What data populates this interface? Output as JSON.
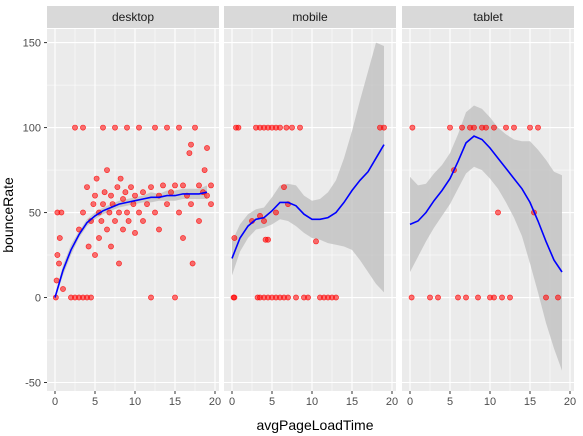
{
  "chart_data": {
    "type": "scatter",
    "xlabel": "avgPageLoadTime",
    "ylabel": "bounceRate",
    "xlim": [
      -1,
      20.5
    ],
    "ylim": [
      -55,
      158
    ],
    "x_ticks": [
      0,
      5,
      10,
      15,
      20
    ],
    "y_ticks": [
      -50,
      0,
      50,
      100,
      150
    ],
    "grid": true,
    "legend": "none",
    "colors": {
      "points": "#ff0000",
      "smooth_line": "#0000ff",
      "ribbon": "#bdbdbd",
      "panel_bg": "#ebebeb",
      "strip_bg": "#d9d9d9",
      "grid": "#ffffff"
    },
    "panels": [
      {
        "name": "desktop",
        "points": [
          [
            0.1,
            0
          ],
          [
            0.2,
            10
          ],
          [
            0.3,
            25
          ],
          [
            0.3,
            50
          ],
          [
            0.5,
            20
          ],
          [
            0.6,
            35
          ],
          [
            0.8,
            50
          ],
          [
            1.0,
            5
          ],
          [
            2.0,
            0
          ],
          [
            2.5,
            0
          ],
          [
            3.0,
            0
          ],
          [
            3.5,
            0
          ],
          [
            2.5,
            100
          ],
          [
            3.5,
            100
          ],
          [
            4.0,
            0
          ],
          [
            4.5,
            0
          ],
          [
            3.0,
            40
          ],
          [
            3.5,
            50
          ],
          [
            4.0,
            65
          ],
          [
            4.2,
            30
          ],
          [
            4.5,
            45
          ],
          [
            4.8,
            55
          ],
          [
            5.0,
            60
          ],
          [
            5.0,
            25
          ],
          [
            5.2,
            70
          ],
          [
            5.5,
            50
          ],
          [
            5.5,
            35
          ],
          [
            5.8,
            45
          ],
          [
            6.0,
            55
          ],
          [
            6.0,
            100
          ],
          [
            6.2,
            62
          ],
          [
            6.5,
            40
          ],
          [
            6.5,
            75
          ],
          [
            6.8,
            50
          ],
          [
            7.0,
            30
          ],
          [
            7.0,
            60
          ],
          [
            7.2,
            55
          ],
          [
            7.5,
            45
          ],
          [
            7.5,
            100
          ],
          [
            7.8,
            65
          ],
          [
            8.0,
            50
          ],
          [
            8.0,
            20
          ],
          [
            8.2,
            70
          ],
          [
            8.5,
            40
          ],
          [
            8.5,
            58
          ],
          [
            8.8,
            62
          ],
          [
            9.0,
            50
          ],
          [
            9.0,
            100
          ],
          [
            9.2,
            45
          ],
          [
            9.5,
            65
          ],
          [
            9.8,
            55
          ],
          [
            10.0,
            38
          ],
          [
            10.0,
            60
          ],
          [
            10.5,
            50
          ],
          [
            10.5,
            100
          ],
          [
            11.0,
            62
          ],
          [
            11.0,
            45
          ],
          [
            11.5,
            55
          ],
          [
            12.0,
            65
          ],
          [
            12.0,
            0
          ],
          [
            12.5,
            50
          ],
          [
            12.5,
            100
          ],
          [
            13.0,
            60
          ],
          [
            13.0,
            40
          ],
          [
            13.5,
            66
          ],
          [
            14.0,
            55
          ],
          [
            14.0,
            100
          ],
          [
            14.5,
            62
          ],
          [
            15.0,
            66
          ],
          [
            15.0,
            0
          ],
          [
            15.5,
            50
          ],
          [
            15.5,
            100
          ],
          [
            16.0,
            66
          ],
          [
            16.0,
            35
          ],
          [
            16.5,
            60
          ],
          [
            17.0,
            90
          ],
          [
            17.0,
            55
          ],
          [
            17.5,
            100
          ],
          [
            18.0,
            66
          ],
          [
            18.0,
            45
          ],
          [
            18.5,
            62
          ],
          [
            19.0,
            88
          ],
          [
            19.0,
            60
          ],
          [
            19.5,
            66
          ],
          [
            19.5,
            55
          ],
          [
            17.2,
            20
          ],
          [
            16.8,
            85
          ],
          [
            18.7,
            75
          ]
        ],
        "smooth": {
          "x": [
            0,
            1,
            2,
            3,
            4,
            5,
            6,
            7,
            8,
            9,
            10,
            11,
            12,
            13,
            14,
            15,
            16,
            17,
            18,
            19
          ],
          "y": [
            0,
            16,
            28,
            37,
            44,
            48,
            51,
            53,
            55,
            56,
            57,
            58,
            59,
            59,
            60,
            60,
            61,
            61,
            61,
            62
          ],
          "lower": [
            -1,
            13,
            25,
            35,
            42,
            46,
            49,
            51,
            53,
            54,
            55,
            56,
            56,
            57,
            57,
            57,
            58,
            58,
            58,
            58
          ],
          "upper": [
            1,
            19,
            31,
            39,
            46,
            50,
            53,
            55,
            57,
            58,
            59,
            60,
            62,
            61,
            63,
            63,
            64,
            64,
            64,
            66
          ]
        }
      },
      {
        "name": "mobile",
        "points": [
          [
            0.2,
            0
          ],
          [
            0.3,
            35
          ],
          [
            0.5,
            100
          ],
          [
            0.8,
            100
          ],
          [
            0.3,
            0
          ],
          [
            2.5,
            45
          ],
          [
            3.0,
            100
          ],
          [
            3.2,
            0
          ],
          [
            3.5,
            0
          ],
          [
            3.5,
            100
          ],
          [
            4.0,
            100
          ],
          [
            4.0,
            0
          ],
          [
            4.2,
            34
          ],
          [
            4.5,
            0
          ],
          [
            4.5,
            100
          ],
          [
            4.5,
            34
          ],
          [
            5.0,
            0
          ],
          [
            5.0,
            100
          ],
          [
            5.5,
            0
          ],
          [
            5.5,
            100
          ],
          [
            6.0,
            0
          ],
          [
            6.0,
            100
          ],
          [
            6.5,
            65
          ],
          [
            6.5,
            0
          ],
          [
            6.8,
            100
          ],
          [
            7.0,
            0
          ],
          [
            7.5,
            100
          ],
          [
            8.0,
            0
          ],
          [
            8.5,
            100
          ],
          [
            9.0,
            0
          ],
          [
            9.5,
            0
          ],
          [
            10.5,
            33
          ],
          [
            11.0,
            0
          ],
          [
            11.5,
            0
          ],
          [
            12.0,
            0
          ],
          [
            12.5,
            0
          ],
          [
            13.0,
            0
          ],
          [
            18.5,
            100
          ],
          [
            19.0,
            100
          ],
          [
            5.5,
            50
          ],
          [
            7.0,
            55
          ],
          [
            4.0,
            45
          ],
          [
            3.5,
            48
          ]
        ],
        "smooth": {
          "x": [
            0,
            1,
            2,
            3,
            4,
            5,
            6,
            7,
            8,
            9,
            10,
            11,
            12,
            13,
            14,
            15,
            16,
            17,
            18,
            19
          ],
          "y": [
            23,
            35,
            42,
            46,
            47,
            51,
            56,
            56,
            54,
            49,
            46,
            46,
            47,
            50,
            56,
            63,
            69,
            74,
            82,
            90
          ],
          "lower": [
            13,
            27,
            35,
            40,
            41,
            43,
            46,
            45,
            42,
            38,
            35,
            34,
            32,
            31,
            30,
            28,
            22,
            15,
            8,
            3
          ],
          "upper": [
            33,
            43,
            49,
            52,
            53,
            59,
            66,
            67,
            66,
            60,
            57,
            58,
            62,
            69,
            82,
            98,
            116,
            133,
            150,
            148
          ]
        }
      },
      {
        "name": "tablet",
        "points": [
          [
            0.2,
            0
          ],
          [
            0.3,
            100
          ],
          [
            2.5,
            0
          ],
          [
            3.5,
            0
          ],
          [
            5.0,
            100
          ],
          [
            5.5,
            75
          ],
          [
            6.5,
            100
          ],
          [
            7.0,
            0
          ],
          [
            7.5,
            100
          ],
          [
            8.0,
            100
          ],
          [
            8.5,
            0
          ],
          [
            9.0,
            100
          ],
          [
            9.5,
            100
          ],
          [
            10.0,
            0
          ],
          [
            10.5,
            100
          ],
          [
            11.0,
            50
          ],
          [
            11.5,
            0
          ],
          [
            12.0,
            100
          ],
          [
            12.5,
            0
          ],
          [
            13.0,
            100
          ],
          [
            15.0,
            100
          ],
          [
            15.5,
            50
          ],
          [
            16.0,
            100
          ],
          [
            17.0,
            0
          ],
          [
            18.5,
            0
          ],
          [
            6.0,
            0
          ],
          [
            10.5,
            0
          ]
        ],
        "smooth": {
          "x": [
            0,
            1,
            2,
            3,
            4,
            5,
            6,
            7,
            8,
            9,
            10,
            11,
            12,
            13,
            14,
            15,
            16,
            17,
            18,
            19
          ],
          "y": [
            43,
            45,
            50,
            57,
            63,
            70,
            80,
            91,
            95,
            93,
            88,
            82,
            76,
            70,
            64,
            56,
            45,
            33,
            22,
            15
          ],
          "lower": [
            15,
            24,
            33,
            41,
            48,
            55,
            64,
            73,
            77,
            75,
            70,
            64,
            56,
            47,
            36,
            20,
            3,
            -15,
            -30,
            -43
          ],
          "upper": [
            71,
            66,
            67,
            73,
            78,
            85,
            96,
            109,
            113,
            111,
            106,
            100,
            96,
            93,
            92,
            92,
            87,
            81,
            74,
            72
          ]
        }
      }
    ]
  }
}
